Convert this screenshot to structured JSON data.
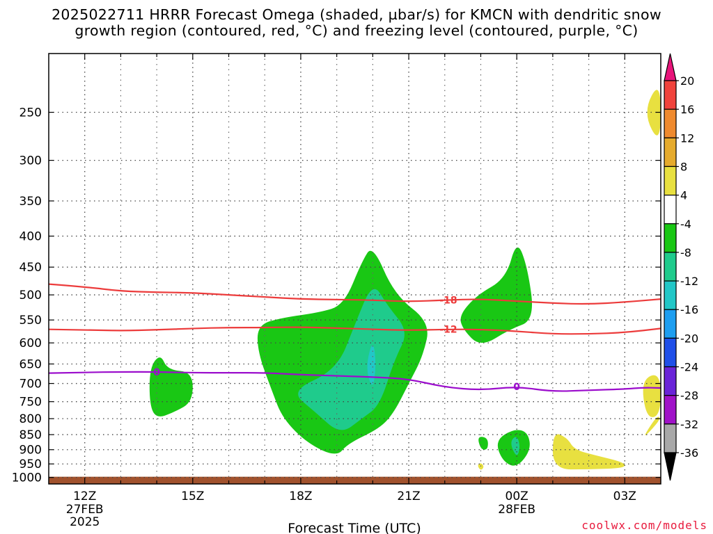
{
  "title": {
    "line1": "2025022711 HRRR Forecast Omega (shaded, µbar/s) for KMCN with dendritic snow",
    "line2": "growth region (contoured, red, °C) and freezing level (contoured, purple, °C)"
  },
  "credit": "coolwx.com/models",
  "chart_data": {
    "type": "heatmap",
    "xlabel": "Forecast Time (UTC)",
    "ylabel": "",
    "x_ticks": [
      {
        "hour": 12,
        "label": "12Z",
        "sub1": "27FEB",
        "sub2": "2025"
      },
      {
        "hour": 15,
        "label": "15Z",
        "sub1": "",
        "sub2": ""
      },
      {
        "hour": 18,
        "label": "18Z",
        "sub1": "",
        "sub2": ""
      },
      {
        "hour": 21,
        "label": "21Z",
        "sub1": "",
        "sub2": ""
      },
      {
        "hour": 24,
        "label": "00Z",
        "sub1": "28FEB",
        "sub2": ""
      },
      {
        "hour": 27,
        "label": "03Z",
        "sub1": "",
        "sub2": ""
      }
    ],
    "xlim_hours": [
      11,
      28
    ],
    "y_axis": "pressure (hPa, log scale, inverted)",
    "ylim": [
      1025,
      200
    ],
    "y_ticks": [
      250,
      300,
      350,
      400,
      450,
      500,
      550,
      600,
      650,
      700,
      750,
      800,
      850,
      900,
      950,
      1000
    ],
    "grid": true,
    "colorbar": {
      "levels": [
        "20",
        "16",
        "12",
        "8",
        "4",
        "-4",
        "-8",
        "-12",
        "-16",
        "-20",
        "-24",
        "-28",
        "-32",
        "-36"
      ],
      "colors": [
        "#f53d5c",
        "#f0433c",
        "#ef8a2e",
        "#e6ab2d",
        "#e8e040",
        "#ffffff",
        "#19c714",
        "#1fcb8c",
        "#22c7c7",
        "#1e9ef0",
        "#1f4fe8",
        "#6a24d8",
        "#a012c8",
        "#a8a8a8"
      ],
      "top_arrow_color": "#e8147a",
      "bottom_arrow_color": "#000000"
    },
    "contours": [
      {
        "label": "-18",
        "color": "#ec3b3b",
        "label_hour": 22.1,
        "points": [
          [
            11,
            480
          ],
          [
            12,
            485
          ],
          [
            13,
            493
          ],
          [
            14,
            495
          ],
          [
            15,
            496
          ],
          [
            16,
            500
          ],
          [
            17,
            504
          ],
          [
            18,
            508
          ],
          [
            19,
            509
          ],
          [
            20,
            510
          ],
          [
            21,
            513
          ],
          [
            22,
            510
          ],
          [
            23,
            508
          ],
          [
            24,
            512
          ],
          [
            25,
            516
          ],
          [
            26,
            518
          ],
          [
            27,
            514
          ],
          [
            28,
            508
          ]
        ]
      },
      {
        "label": "-12",
        "color": "#ec3b3b",
        "label_hour": 22.1,
        "points": [
          [
            11,
            570
          ],
          [
            12,
            571
          ],
          [
            13,
            573
          ],
          [
            14,
            571
          ],
          [
            15,
            568
          ],
          [
            16,
            566
          ],
          [
            17,
            566
          ],
          [
            18,
            565
          ],
          [
            19,
            567
          ],
          [
            20,
            570
          ],
          [
            21,
            572
          ],
          [
            22,
            570
          ],
          [
            23,
            570
          ],
          [
            24,
            574
          ],
          [
            25,
            580
          ],
          [
            26,
            580
          ],
          [
            27,
            577
          ],
          [
            28,
            568
          ]
        ]
      },
      {
        "label": "0",
        "color": "#9b0dcc",
        "label_hour": 14,
        "points": [
          [
            11,
            673
          ],
          [
            12,
            671
          ],
          [
            13,
            670
          ],
          [
            14,
            670
          ],
          [
            15,
            672
          ],
          [
            16,
            672
          ],
          [
            17,
            672
          ],
          [
            18,
            677
          ],
          [
            19,
            680
          ],
          [
            20,
            683
          ],
          [
            21,
            688
          ],
          [
            22,
            710
          ],
          [
            23,
            718
          ],
          [
            24,
            708
          ],
          [
            25,
            722
          ],
          [
            26,
            718
          ],
          [
            27,
            715
          ],
          [
            27.5,
            711
          ],
          [
            28,
            712
          ]
        ]
      },
      {
        "label": "0",
        "color": "#9b0dcc",
        "label_hour": 24,
        "points": []
      }
    ],
    "omega_regions": [
      {
        "value_range": "-8 to -4",
        "color": "#19c714",
        "points": [
          [
            16.8,
            560
          ],
          [
            17.5,
            545
          ],
          [
            18.5,
            535
          ],
          [
            19.2,
            520
          ],
          [
            19.7,
            440
          ],
          [
            20,
            413
          ],
          [
            20.6,
            500
          ],
          [
            21.6,
            555
          ],
          [
            21.4,
            630
          ],
          [
            21,
            700
          ],
          [
            20.6,
            780
          ],
          [
            20.2,
            830
          ],
          [
            19.3,
            880
          ],
          [
            19,
            925
          ],
          [
            18.2,
            880
          ],
          [
            17.5,
            800
          ],
          [
            17.2,
            720
          ],
          [
            16.8,
            620
          ]
        ]
      },
      {
        "value_range": "-12 to -8",
        "color": "#1fcb8c",
        "points": [
          [
            17.7,
            720
          ],
          [
            19,
            665
          ],
          [
            19.5,
            560
          ],
          [
            20,
            475
          ],
          [
            20.4,
            520
          ],
          [
            21,
            575
          ],
          [
            20.6,
            640
          ],
          [
            20.2,
            760
          ],
          [
            19.7,
            800
          ],
          [
            19.1,
            850
          ],
          [
            18.4,
            780
          ]
        ]
      },
      {
        "value_range": "-16 to -12",
        "color": "#22c7c7",
        "points": [
          [
            19.8,
            660
          ],
          [
            20,
            590
          ],
          [
            20.1,
            650
          ],
          [
            20,
            720
          ]
        ]
      },
      {
        "value_range": "-8 to -4",
        "color": "#19c714",
        "points": [
          [
            13.8,
            660
          ],
          [
            14.1,
            625
          ],
          [
            14.3,
            665
          ],
          [
            15,
            670
          ],
          [
            15,
            750
          ],
          [
            14.5,
            780
          ],
          [
            14,
            800
          ],
          [
            13.8,
            760
          ]
        ]
      },
      {
        "value_range": "-8 to -4",
        "color": "#19c714",
        "points": [
          [
            22.4,
            540
          ],
          [
            22.9,
            500
          ],
          [
            23.7,
            470
          ],
          [
            24,
            405
          ],
          [
            24.3,
            450
          ],
          [
            24.5,
            550
          ],
          [
            23.8,
            570
          ],
          [
            23,
            610
          ],
          [
            22.5,
            570
          ]
        ]
      },
      {
        "value_range": "-8 to -4",
        "color": "#19c714",
        "points": [
          [
            22.9,
            855
          ],
          [
            23.2,
            860
          ],
          [
            23.2,
            900
          ],
          [
            23,
            900
          ]
        ]
      },
      {
        "value_range": "-8 to -4",
        "color": "#19c714",
        "points": [
          [
            23.4,
            870
          ],
          [
            23.9,
            832
          ],
          [
            24.3,
            840
          ],
          [
            24.4,
            900
          ],
          [
            24,
            965
          ],
          [
            23.6,
            940
          ]
        ]
      },
      {
        "value_range": "-12 to -8",
        "color": "#1fcb8c",
        "points": [
          [
            23.8,
            875
          ],
          [
            24,
            850
          ],
          [
            24.1,
            890
          ],
          [
            24,
            930
          ]
        ]
      },
      {
        "value_range": "4 to 8",
        "color": "#e8e040",
        "points": [
          [
            28,
            220
          ],
          [
            27.5,
            250
          ],
          [
            28,
            285
          ]
        ]
      },
      {
        "value_range": "4 to 8",
        "color": "#e8e040",
        "points": [
          [
            27.45,
            690
          ],
          [
            28,
            670
          ],
          [
            28,
            790
          ],
          [
            27.6,
            800
          ]
        ]
      },
      {
        "value_range": "4 to 8",
        "color": "#e8e040",
        "points": [
          [
            27.5,
            860
          ],
          [
            27.9,
            790
          ],
          [
            28,
            800
          ],
          [
            27.7,
            840
          ]
        ]
      },
      {
        "value_range": "4 to 8",
        "color": "#e8e040",
        "points": [
          [
            25,
            840
          ],
          [
            25.4,
            860
          ],
          [
            25.6,
            900
          ],
          [
            26.2,
            920
          ],
          [
            27,
            945
          ],
          [
            27,
            965
          ],
          [
            26,
            970
          ],
          [
            25,
            970
          ]
        ]
      },
      {
        "value_range": "4 to 8",
        "color": "#e8e040",
        "points": [
          [
            22.9,
            955
          ],
          [
            23,
            945
          ],
          [
            23.1,
            960
          ],
          [
            23,
            975
          ]
        ]
      }
    ],
    "ground": {
      "from_hPa": 1000,
      "to_hPa": 1025,
      "color": "#a1522d"
    }
  }
}
